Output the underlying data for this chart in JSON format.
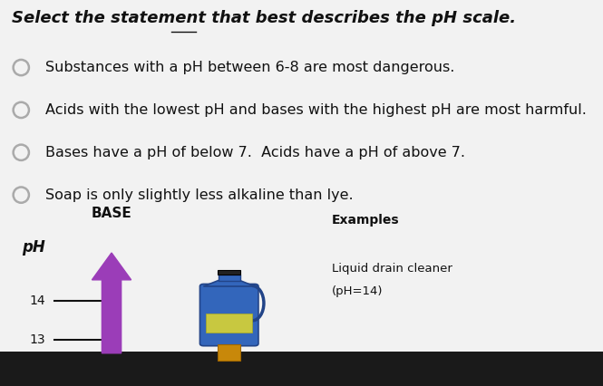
{
  "title": "Select the statement that best describes the pH scale.",
  "bg_color_top": "#e8e8e8",
  "bg_color_bottom": "#f0f0f0",
  "bg_color_black": "#111111",
  "options": [
    "Substances with a pH between 6-8 are most dangerous.",
    "Acids with the lowest pH and bases with the highest pH are most harmful.",
    "Bases have a pH of below 7.  Acids have a pH of above 7.",
    "Soap is only slightly less alkaline than lye."
  ],
  "option_fontsize": 11.5,
  "title_fontsize": 13,
  "arrow_color": "#9B3DB8",
  "base_label": "BASE",
  "ph_label": "pH",
  "examples_label": "Examples",
  "drain_cleaner_text1": "Liquid drain cleaner",
  "drain_cleaner_text2": "(pH=14)",
  "radio_circle_color": "#aaaaaa",
  "text_color": "#111111",
  "tick_labels": [
    "14",
    "13"
  ]
}
